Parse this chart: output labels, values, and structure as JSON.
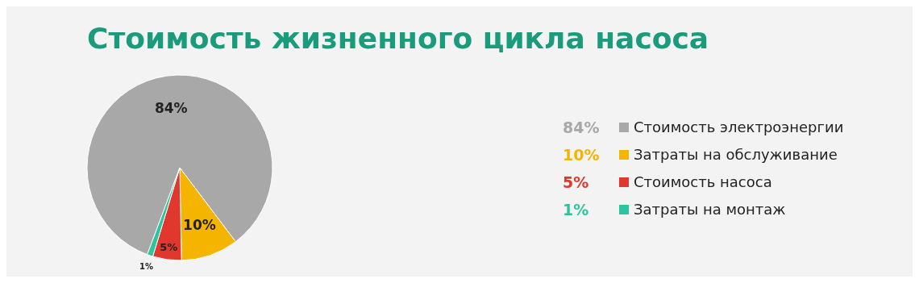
{
  "chart_data": {
    "type": "pie",
    "title": "Стоимость жизненного цикла насоса",
    "categories": [
      "Стоимость электроэнергии",
      "Затраты на обслуживание",
      "Стоимость насоса",
      "Затраты на монтаж"
    ],
    "values": [
      84,
      10,
      5,
      1
    ],
    "value_labels": [
      "84%",
      "10%",
      "5%",
      "1%"
    ],
    "colors": [
      "#a8a8a8",
      "#f5b400",
      "#e0382c",
      "#2ec49e"
    ],
    "legend": "right"
  }
}
